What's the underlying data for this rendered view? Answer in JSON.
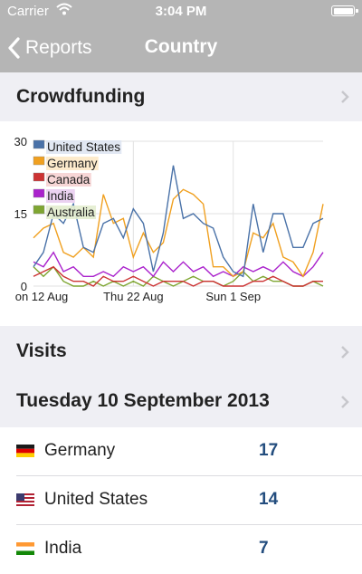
{
  "status_bar": {
    "carrier": "Carrier",
    "time": "3:04 PM",
    "wifi_icon": "wifi-icon",
    "battery_icon": "battery-icon"
  },
  "nav": {
    "back_label": "Reports",
    "title": "Country"
  },
  "sections": {
    "crowdfunding": "Crowdfunding",
    "visits": "Visits",
    "date": "Tuesday 10 September 2013"
  },
  "chart_data": {
    "type": "line",
    "x_tick_labels": [
      "on 12 Aug",
      "Thu 22 Aug",
      "Sun 1 Sep"
    ],
    "y_tick_labels": [
      "0",
      "15",
      "30"
    ],
    "ylim": [
      0,
      30
    ],
    "grid": true,
    "legend_placement": "top-left",
    "series": [
      {
        "name": "United States",
        "color": "#4a72a8",
        "values": [
          4,
          7,
          15,
          13,
          17,
          8,
          7,
          13,
          14,
          10,
          16,
          13,
          3,
          11,
          25,
          14,
          15,
          13,
          12,
          6,
          3,
          2,
          17,
          7,
          15,
          15,
          8,
          8,
          13,
          14
        ]
      },
      {
        "name": "Germany",
        "color": "#f0a020",
        "values": [
          10,
          12,
          13,
          7,
          6,
          8,
          6,
          19,
          13,
          14,
          6,
          11,
          7,
          9,
          18,
          20,
          19,
          17,
          4,
          4,
          2,
          3,
          11,
          10,
          13,
          6,
          5,
          2,
          7,
          17
        ]
      },
      {
        "name": "Canada",
        "color": "#cc3333",
        "values": [
          2,
          3,
          4,
          2,
          1,
          1,
          0,
          2,
          1,
          1,
          2,
          1,
          0,
          1,
          1,
          1,
          0,
          1,
          1,
          0,
          0,
          0,
          1,
          1,
          2,
          1,
          0,
          0,
          1,
          1
        ]
      },
      {
        "name": "India",
        "color": "#aa22cc",
        "values": [
          5,
          4,
          7,
          3,
          4,
          2,
          2,
          3,
          2,
          4,
          3,
          4,
          2,
          5,
          3,
          5,
          3,
          4,
          2,
          3,
          2,
          4,
          3,
          4,
          3,
          5,
          3,
          2,
          4,
          7
        ]
      },
      {
        "name": "Australia",
        "color": "#7fa632",
        "values": [
          4,
          2,
          4,
          1,
          0,
          0,
          1,
          0,
          1,
          0,
          1,
          0,
          2,
          1,
          0,
          1,
          2,
          1,
          1,
          0,
          1,
          3,
          1,
          2,
          1,
          1,
          0,
          0,
          1,
          0
        ]
      }
    ]
  },
  "rows": [
    {
      "country": "Germany",
      "count": "17",
      "flag_icon": "germany-flag-icon"
    },
    {
      "country": "United States",
      "count": "14",
      "flag_icon": "us-flag-icon"
    },
    {
      "country": "India",
      "count": "7",
      "flag_icon": "india-flag-icon"
    }
  ]
}
